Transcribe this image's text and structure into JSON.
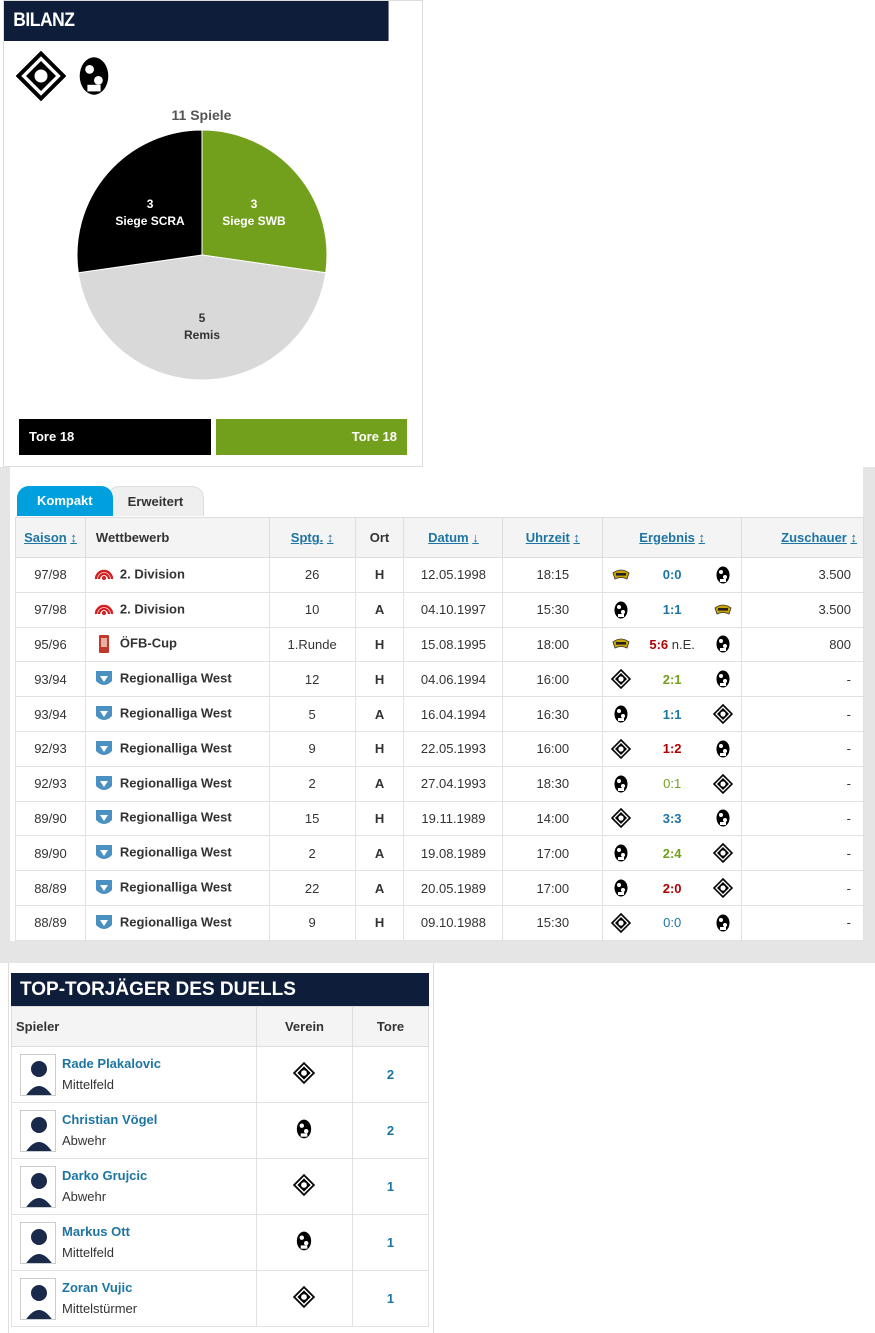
{
  "bilanz": {
    "title": "Bilanz",
    "pie_total": "11 Spiele",
    "slices": [
      {
        "count": "3",
        "label": "Siege SCRA",
        "color": "#000000"
      },
      {
        "count": "3",
        "label": "Siege SWB",
        "color": "#72a01d"
      },
      {
        "count": "5",
        "label": "Remis",
        "color": "#d9d9d9"
      }
    ],
    "tore_left": "Tore 18",
    "tore_right": "Tore 18"
  },
  "tabs": {
    "compact": "Kompakt",
    "extended": "Erweitert"
  },
  "matches": {
    "headers": {
      "saison": "Saison",
      "wettbewerb": "Wettbewerb",
      "sptg": "Sptg.",
      "ort": "Ort",
      "datum": "Datum",
      "uhrzeit": "Uhrzeit",
      "ergebnis": "Ergebnis",
      "zuschauer": "Zuschauer"
    },
    "rows": [
      {
        "saison": "97/98",
        "comp": "2. Division",
        "comp_icon": "liga-icon",
        "sptg": "26",
        "ort": "H",
        "datum": "12.05.1998",
        "uhrzeit": "18:15",
        "score": "0:0",
        "score_class": "draw",
        "home": "swb",
        "away": "vogel",
        "zuschauer": "3.500"
      },
      {
        "saison": "97/98",
        "comp": "2. Division",
        "comp_icon": "liga-icon",
        "sptg": "10",
        "ort": "A",
        "datum": "04.10.1997",
        "uhrzeit": "15:30",
        "score": "1:1",
        "score_class": "draw",
        "home": "vogel",
        "away": "swb",
        "zuschauer": "3.500"
      },
      {
        "saison": "95/96",
        "comp": "ÖFB-Cup",
        "comp_icon": "cup-icon",
        "sptg": "1.Runde",
        "ort": "H",
        "datum": "15.08.1995",
        "uhrzeit": "18:00",
        "score": "5:6",
        "score_suffix": " n.E.",
        "score_class": "loss",
        "home": "swb",
        "away": "vogel",
        "zuschauer": "800"
      },
      {
        "saison": "93/94",
        "comp": "Regionalliga West",
        "comp_icon": "rlw-icon",
        "sptg": "12",
        "ort": "H",
        "datum": "04.06.1994",
        "uhrzeit": "16:00",
        "score": "2:1",
        "score_class": "win",
        "home": "scra",
        "away": "vogel",
        "zuschauer": "-"
      },
      {
        "saison": "93/94",
        "comp": "Regionalliga West",
        "comp_icon": "rlw-icon",
        "sptg": "5",
        "ort": "A",
        "datum": "16.04.1994",
        "uhrzeit": "16:30",
        "score": "1:1",
        "score_class": "draw",
        "home": "vogel",
        "away": "scra",
        "zuschauer": "-"
      },
      {
        "saison": "92/93",
        "comp": "Regionalliga West",
        "comp_icon": "rlw-icon",
        "sptg": "9",
        "ort": "H",
        "datum": "22.05.1993",
        "uhrzeit": "16:00",
        "score": "1:2",
        "score_class": "loss",
        "home": "scra",
        "away": "vogel",
        "zuschauer": "-"
      },
      {
        "saison": "92/93",
        "comp": "Regionalliga West",
        "comp_icon": "rlw-icon",
        "sptg": "2",
        "ort": "A",
        "datum": "27.04.1993",
        "uhrzeit": "18:30",
        "score": "0:1",
        "score_class": "win plain",
        "home": "vogel",
        "away": "scra",
        "zuschauer": "-"
      },
      {
        "saison": "89/90",
        "comp": "Regionalliga West",
        "comp_icon": "rlw-icon",
        "sptg": "15",
        "ort": "H",
        "datum": "19.11.1989",
        "uhrzeit": "14:00",
        "score": "3:3",
        "score_class": "draw",
        "home": "scra",
        "away": "vogel",
        "zuschauer": "-"
      },
      {
        "saison": "89/90",
        "comp": "Regionalliga West",
        "comp_icon": "rlw-icon",
        "sptg": "2",
        "ort": "A",
        "datum": "19.08.1989",
        "uhrzeit": "17:00",
        "score": "2:4",
        "score_class": "win",
        "home": "vogel",
        "away": "scra",
        "zuschauer": "-"
      },
      {
        "saison": "88/89",
        "comp": "Regionalliga West",
        "comp_icon": "rlw-icon",
        "sptg": "22",
        "ort": "A",
        "datum": "20.05.1989",
        "uhrzeit": "17:00",
        "score": "2:0",
        "score_class": "loss",
        "home": "vogel",
        "away": "scra",
        "zuschauer": "-"
      },
      {
        "saison": "88/89",
        "comp": "Regionalliga West",
        "comp_icon": "rlw-icon",
        "sptg": "9",
        "ort": "H",
        "datum": "09.10.1988",
        "uhrzeit": "15:30",
        "score": "0:0",
        "score_class": "draw plain",
        "home": "scra",
        "away": "vogel",
        "zuschauer": "-"
      }
    ]
  },
  "scorers": {
    "title": "Top-Torjäger des Duells",
    "headers": {
      "spieler": "Spieler",
      "verein": "Verein",
      "tore": "Tore"
    },
    "rows": [
      {
        "name": "Rade Plakalovic",
        "position": "Mittelfeld",
        "club": "scra",
        "goals": "2"
      },
      {
        "name": "Christian Vögel",
        "position": "Abwehr",
        "club": "vogel",
        "goals": "2"
      },
      {
        "name": "Darko Grujcic",
        "position": "Abwehr",
        "club": "scra",
        "goals": "1"
      },
      {
        "name": "Markus Ott",
        "position": "Mittelfeld",
        "club": "vogel",
        "goals": "1"
      },
      {
        "name": "Zoran Vujic",
        "position": "Mittelstürmer",
        "club": "scra",
        "goals": "1"
      }
    ]
  }
}
